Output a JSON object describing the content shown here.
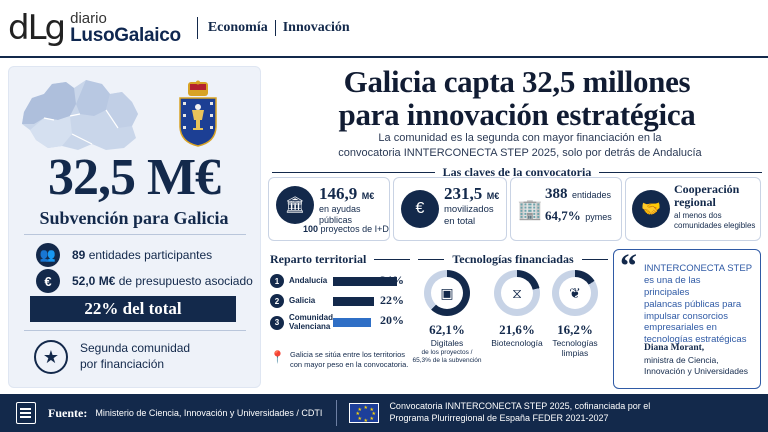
{
  "brand": {
    "mark": "dLg",
    "line1": "diario",
    "line2": "LusoGalaico"
  },
  "sections": [
    "Economía",
    "Innovación"
  ],
  "left": {
    "amount": "32,5 M€",
    "amount_label": "Subvención para Galicia",
    "stats": [
      {
        "icon": "people-icon",
        "strong": "89",
        "text": "entidades participantes"
      },
      {
        "icon": "euro-icon",
        "strong": "52,0 M€",
        "text": "de presupuesto asociado"
      }
    ],
    "pct_box": "22% del total",
    "second_line1": "Segunda comunidad",
    "second_line2": "por financiación"
  },
  "headline": {
    "line1": "Galicia capta 32,5 millones",
    "line2": "para innovación estratégica",
    "subtitle_line1": "La comunidad es la segunda con mayor financiación en la",
    "subtitle_line2": "convocatoria INNTERCONECTA STEP 2025, solo por detrás de Andalucía"
  },
  "claves": {
    "title": "Las claves de la convocatoria",
    "c1": {
      "value": "146,9",
      "unit": "M€",
      "label": "en ayudas públicas",
      "extra_strong": "100",
      "extra": "proyectos de I+D"
    },
    "c2": {
      "value": "231,5",
      "unit": "M€",
      "label1": "movilizados",
      "label2": "en total"
    },
    "c3": {
      "value": "388",
      "label": "entidades",
      "pct": "64,7%",
      "pct_label": "pymes"
    },
    "c4": {
      "title1": "Cooperación",
      "title2": "regional",
      "label1": "al menos dos",
      "label2": "comunidades elegibles"
    }
  },
  "reparto": {
    "title": "Reparto territorial",
    "rows": [
      {
        "n": "1",
        "name": "Andalucía",
        "pct": "34%",
        "value": 34,
        "color": "#13294b"
      },
      {
        "n": "2",
        "name": "Galicia",
        "pct": "22%",
        "value": 22,
        "color": "#13294b"
      },
      {
        "n": "3",
        "name": "Comunidad Valenciana",
        "pct": "20%",
        "value": 20,
        "color": "#2f6fc6"
      }
    ],
    "note": "Galicia se sitúa entre los territorios con mayor peso en la convocatoria."
  },
  "tecnologias": {
    "title": "Tecnologías financiadas",
    "items": [
      {
        "icon": "chip-icon",
        "pct": "62,1%",
        "value": 62.1,
        "label": "Digitales",
        "sub1": "de los proyectos /",
        "sub2": "65,3% de la subvención"
      },
      {
        "icon": "dna-icon",
        "pct": "21,6%",
        "value": 21.6,
        "label": "Biotecnología"
      },
      {
        "icon": "leaf-icon",
        "pct": "16,2%",
        "value": 16.2,
        "label": "Tecnologías",
        "label2": "limpias"
      }
    ],
    "colors": {
      "fill": "#13294b",
      "track": "#c7d3e6"
    }
  },
  "quote": {
    "text": "INNTERCONECTA STEP es una de las herramientas principales palancas públicas para impulsar consorcios empresariales en tecnologías estratégicas",
    "lines": [
      "INNTERCONECTA STEP",
      "es una de las",
      "principales",
      "palancas públicas para",
      "impulsar consorcios",
      "empresariales en",
      "tecnologías estratégicas"
    ],
    "name": "Diana Morant,",
    "role": "ministra de Ciencia, Innovación y Universidades"
  },
  "footer": {
    "fuente_label": "Fuente:",
    "fuente": "Ministerio de Ciencia, Innovación y Universidades / CDTI",
    "conv_line1": "Convocatoria INNTERCONECTA STEP 2025, cofinanciada por el",
    "conv_line2": "Programa Plurirregional de España FEDER 2021-2027"
  },
  "colors": {
    "navy": "#13294b",
    "accent_blue": "#2f6fc6",
    "panel": "#eef2f9"
  }
}
